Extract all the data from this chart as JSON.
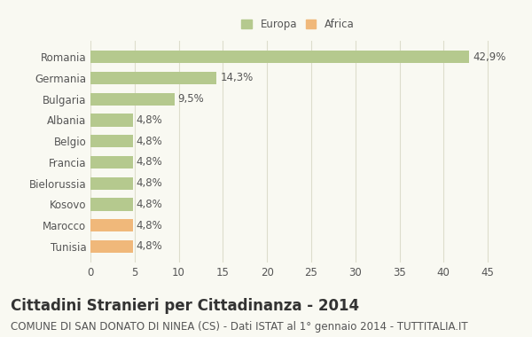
{
  "countries_top_to_bottom": [
    "Romania",
    "Germania",
    "Bulgaria",
    "Albania",
    "Belgio",
    "Francia",
    "Bielorussia",
    "Kosovo",
    "Marocco",
    "Tunisia"
  ],
  "values_top_to_bottom": [
    42.9,
    14.3,
    9.5,
    4.8,
    4.8,
    4.8,
    4.8,
    4.8,
    4.8,
    4.8
  ],
  "labels_top_to_bottom": [
    "42,9%",
    "14,3%",
    "9,5%",
    "4,8%",
    "4,8%",
    "4,8%",
    "4,8%",
    "4,8%",
    "4,8%",
    "4,8%"
  ],
  "colors_top_to_bottom": [
    "#b5c98e",
    "#b5c98e",
    "#b5c98e",
    "#b5c98e",
    "#b5c98e",
    "#b5c98e",
    "#b5c98e",
    "#b5c98e",
    "#f0b87a",
    "#f0b87a"
  ],
  "europa_color": "#b5c98e",
  "africa_color": "#f0b87a",
  "title": "Cittadini Stranieri per Cittadinanza - 2014",
  "subtitle": "COMUNE DI SAN DONATO DI NINEA (CS) - Dati ISTAT al 1° gennaio 2014 - TUTTITALIA.IT",
  "xlim": [
    0,
    47
  ],
  "xticks": [
    0,
    5,
    10,
    15,
    20,
    25,
    30,
    35,
    40,
    45
  ],
  "background_color": "#f9f9f2",
  "grid_color": "#ddddcc",
  "bar_height": 0.6,
  "title_fontsize": 12,
  "subtitle_fontsize": 8.5,
  "label_fontsize": 8.5,
  "tick_fontsize": 8.5
}
